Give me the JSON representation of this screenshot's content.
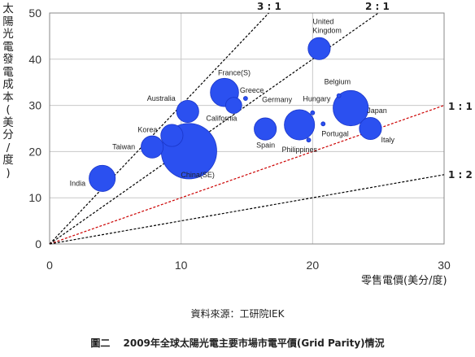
{
  "chart_data": {
    "type": "scatter",
    "ylabel": "太陽光電發電成本(美分/度)",
    "xlabel": "零售電價(美分/度)",
    "xlim": [
      0,
      30
    ],
    "ylim": [
      0,
      50
    ],
    "xticks": [
      "0",
      "10",
      "20",
      "30"
    ],
    "yticks": [
      "0",
      "10",
      "20",
      "30",
      "40",
      "50"
    ],
    "grid": true,
    "reference_lines": [
      {
        "label": "3 : 1",
        "slope": 3,
        "color": "#000000"
      },
      {
        "label": "2 : 1",
        "slope": 2,
        "color": "#000000"
      },
      {
        "label": "1 : 1",
        "slope": 1,
        "color": "#cc0000"
      },
      {
        "label": "1 : 2",
        "slope": 0.5,
        "color": "#000000"
      }
    ],
    "points": [
      {
        "label": "India",
        "x": 4.0,
        "y": 14.2,
        "size": 2.6
      },
      {
        "label": "China(SE)",
        "x": 10.6,
        "y": 20.1,
        "size": 5.5
      },
      {
        "label": "Taiwan",
        "x": 7.8,
        "y": 21.0,
        "size": 2.2
      },
      {
        "label": "Korea",
        "x": 9.3,
        "y": 23.5,
        "size": 2.2
      },
      {
        "label": "Australia",
        "x": 10.5,
        "y": 28.7,
        "size": 2.2
      },
      {
        "label": "France(S)",
        "x": 13.3,
        "y": 32.8,
        "size": 2.8
      },
      {
        "label": "California",
        "x": 14.0,
        "y": 30.0,
        "size": 1.6
      },
      {
        "label": "Greece",
        "x": 14.9,
        "y": 31.5,
        "size": 0.4
      },
      {
        "label": "Spain",
        "x": 16.4,
        "y": 24.9,
        "size": 2.2
      },
      {
        "label": "Germany",
        "x": 19.0,
        "y": 25.8,
        "size": 3.0
      },
      {
        "label": "Hungary",
        "x": 20.0,
        "y": 28.4,
        "size": 0.4
      },
      {
        "label": "Philippines",
        "x": 19.7,
        "y": 22.5,
        "size": 0.4
      },
      {
        "label": "Portugal",
        "x": 20.8,
        "y": 26.0,
        "size": 0.4
      },
      {
        "label": "Belgium",
        "x": 22.0,
        "y": 32.1,
        "size": 0.4
      },
      {
        "label": "Japan",
        "x": 22.9,
        "y": 29.4,
        "size": 3.5
      },
      {
        "label": "Italy",
        "x": 24.4,
        "y": 25.0,
        "size": 2.2
      },
      {
        "label": "United Kingdom",
        "x": 20.5,
        "y": 42.3,
        "size": 2.2
      }
    ]
  },
  "ylabel_chars": [
    "太",
    "陽",
    "光",
    "電",
    "發",
    "電",
    "成",
    "本",
    "(",
    "美",
    "分",
    "/",
    "度",
    ")"
  ],
  "source": "資料來源：工研院IEK",
  "caption": "圖二　 2009年全球太陽光電主要市場市電平價(Grid Parity)情況",
  "colors": {
    "bubble": "#2b50f0",
    "bubble_stroke": "#1a36c9",
    "grid": "#c8c8c8",
    "line_red": "#cc0000"
  }
}
